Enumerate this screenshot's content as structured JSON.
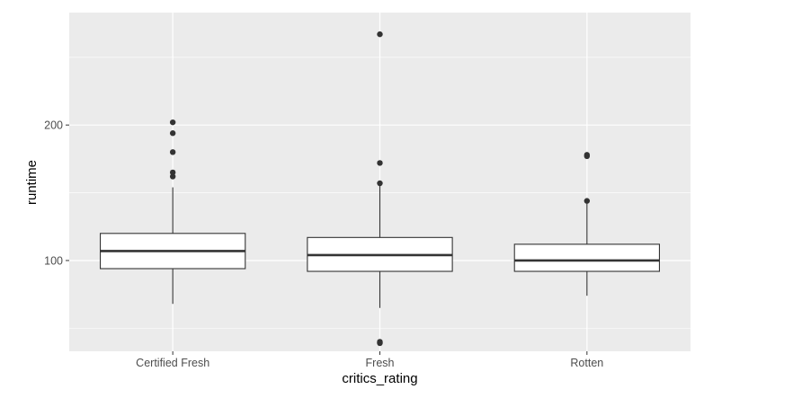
{
  "chart_data": {
    "type": "boxplot",
    "xlabel": "critics_rating",
    "ylabel": "runtime",
    "ylim": [
      33,
      283
    ],
    "yticks": [
      100,
      200
    ],
    "y_minor_ticks": [
      50,
      150,
      250
    ],
    "grid": true,
    "colors": {
      "panel": "#ebebeb",
      "grid": "#ffffff",
      "box_fill": "#ffffff",
      "line": "#333333",
      "tick_text": "#4d4d4d"
    },
    "categories": [
      "Certified Fresh",
      "Fresh",
      "Rotten"
    ],
    "boxes": [
      {
        "category": "Certified Fresh",
        "whisker_low": 68,
        "q1": 94,
        "median": 107,
        "q3": 120,
        "whisker_high": 154,
        "outliers": [
          202,
          194,
          180,
          165,
          162
        ]
      },
      {
        "category": "Fresh",
        "whisker_low": 65,
        "q1": 92,
        "median": 104,
        "q3": 117,
        "whisker_high": 156,
        "outliers": [
          267,
          172,
          157,
          40,
          39
        ]
      },
      {
        "category": "Rotten",
        "whisker_low": 74,
        "q1": 92,
        "median": 100,
        "q3": 112,
        "whisker_high": 144,
        "outliers": [
          178,
          177,
          144
        ]
      }
    ]
  }
}
